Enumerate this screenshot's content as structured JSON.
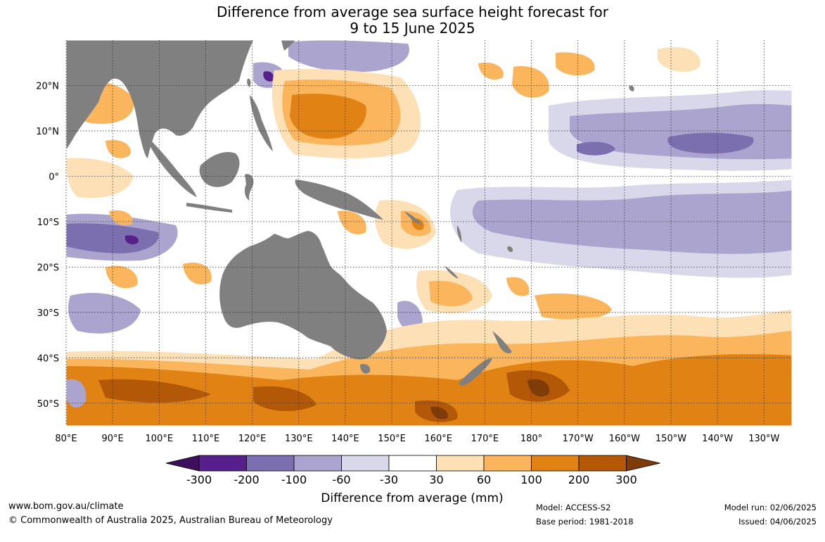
{
  "title": {
    "line1": "Difference from average sea surface height forecast for",
    "line2": "9 to 15 June 2025"
  },
  "map": {
    "lon_labels": [
      "80°E",
      "90°E",
      "100°E",
      "110°E",
      "120°E",
      "130°E",
      "140°E",
      "150°E",
      "160°E",
      "170°E",
      "180°",
      "170°W",
      "160°W",
      "150°W",
      "140°W",
      "130°W"
    ],
    "lat_labels": [
      "20°N",
      "10°N",
      "0°",
      "10°S",
      "20°S",
      "30°S",
      "40°S",
      "50°S"
    ],
    "lon_range": [
      80,
      236
    ],
    "lat_range": [
      -55,
      30
    ],
    "land_color": "#808080",
    "grid": "dotted"
  },
  "colorbar": {
    "colors": [
      "#3d0f5c",
      "#55208a",
      "#7b6fb0",
      "#aba4cf",
      "#d9d8ea",
      "#ffffff",
      "#fee0b6",
      "#fbb55c",
      "#e08214",
      "#b35806",
      "#7f3b08"
    ],
    "tick_labels": [
      "-300",
      "-200",
      "-100",
      "-60",
      "-30",
      "30",
      "60",
      "100",
      "200",
      "300"
    ],
    "label": "Difference from average (mm)"
  },
  "footer": {
    "website": "www.bom.gov.au/climate",
    "copyright": "© Commonwealth of Australia 2025, Australian Bureau of Meteorology",
    "model": "Model: ACCESS-S2",
    "base_period": "Base period: 1981-2018",
    "model_run": "Model run: 02/06/2025",
    "issued": "Issued: 04/06/2025"
  }
}
